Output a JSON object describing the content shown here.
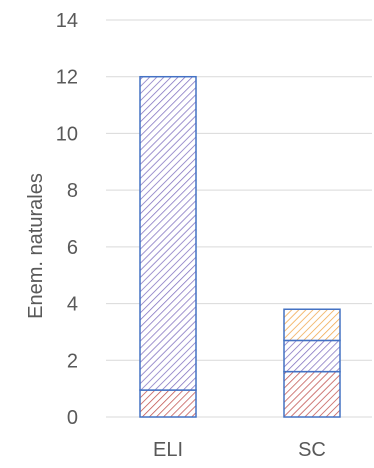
{
  "chart_data": {
    "type": "bar",
    "stacked": true,
    "categories": [
      "ELI",
      "SC"
    ],
    "ylabel": "Enem. naturales",
    "ylim": [
      0,
      14
    ],
    "yticks": [
      0,
      2,
      4,
      6,
      8,
      10,
      12,
      14
    ],
    "grid": true,
    "series": [
      {
        "values": [
          0.95,
          1.6
        ],
        "color": "#c0504d",
        "outline": "#4472c4",
        "pattern": "diagonal-hatch"
      },
      {
        "values": [
          11.05,
          1.1
        ],
        "color": "#7f6fbf",
        "outline": "#4472c4",
        "pattern": "diagonal-hatch"
      },
      {
        "values": [
          0,
          1.1
        ],
        "color": "#f0a64a",
        "outline": "#4472c4",
        "pattern": "diagonal-hatch"
      }
    ]
  }
}
